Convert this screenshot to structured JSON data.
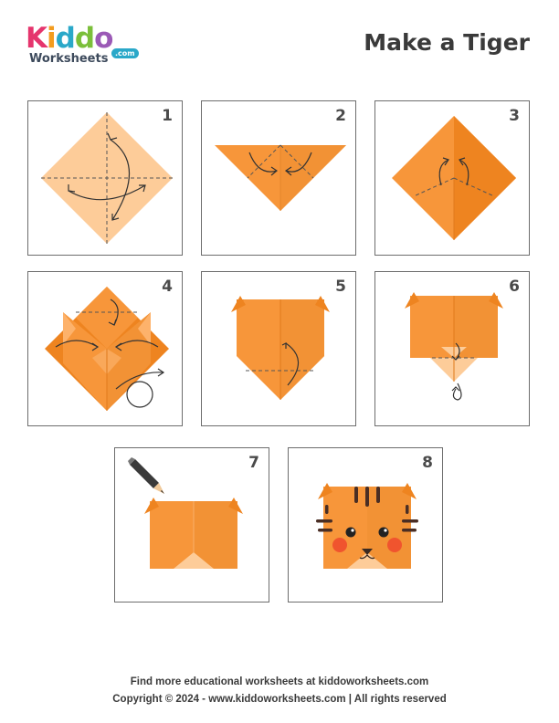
{
  "brand": {
    "letters": [
      "K",
      "i",
      "d",
      "d",
      "o"
    ],
    "letter_colors": [
      "#e5356d",
      "#f39c1f",
      "#2aa8c9",
      "#7bbf3a",
      "#9b59b6"
    ],
    "sub": "Worksheets",
    "domain": ".com"
  },
  "title": "Make a Tiger",
  "steps": [
    {
      "number": "1"
    },
    {
      "number": "2"
    },
    {
      "number": "3"
    },
    {
      "number": "4"
    },
    {
      "number": "5"
    },
    {
      "number": "6"
    },
    {
      "number": "7"
    },
    {
      "number": "8"
    }
  ],
  "colors": {
    "paper_light": "#fdcc99",
    "paper_orange": "#f7963a",
    "paper_dark": "#ee8420",
    "stripe": "#4a2e24",
    "cheek": "#f0542e"
  },
  "footer": {
    "line1": "Find more educational worksheets at kiddoworksheets.com",
    "line2": "Copyright © 2024 - www.kiddoworksheets.com  |  All rights reserved"
  }
}
